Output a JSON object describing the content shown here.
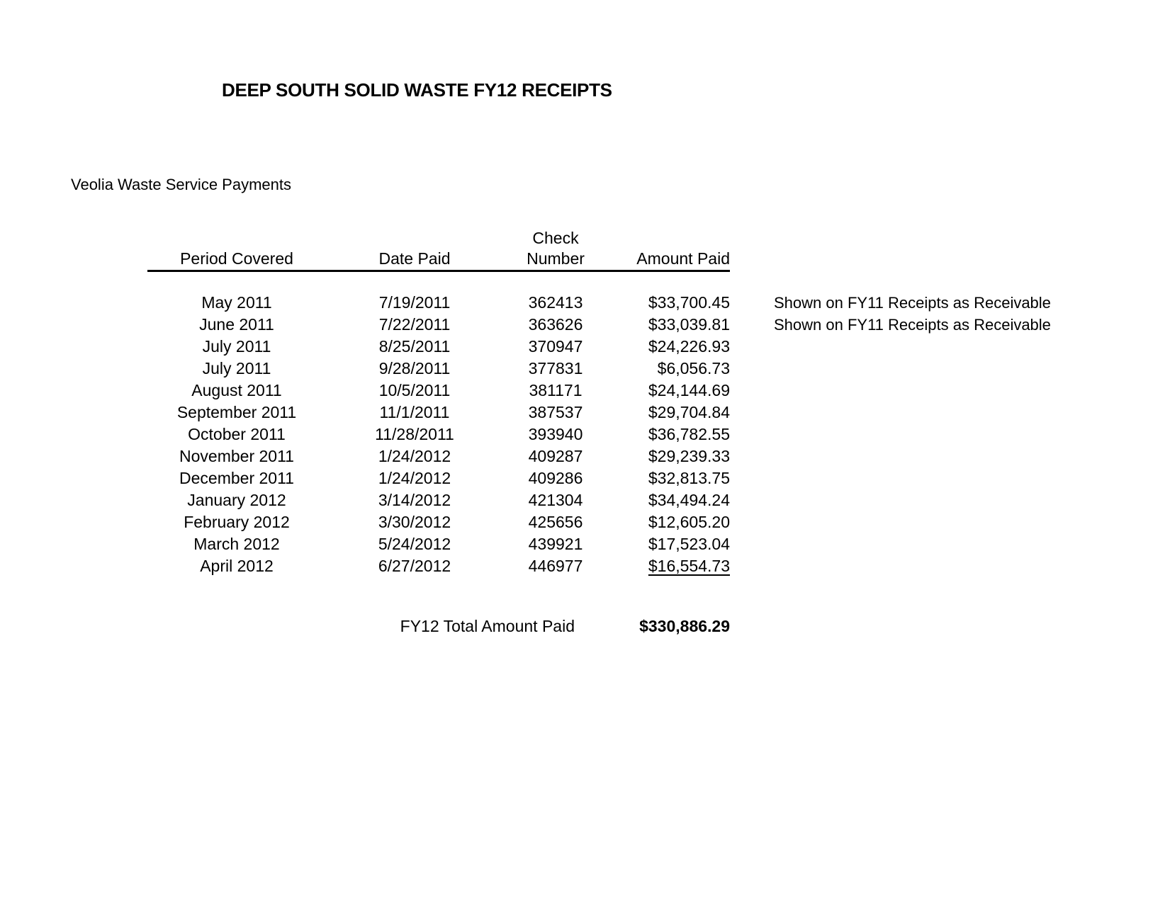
{
  "page": {
    "title": "DEEP SOUTH SOLID WASTE FY12 RECEIPTS",
    "subtitle": "Veolia Waste Service Payments"
  },
  "table": {
    "headers": {
      "period": "Period Covered",
      "date": "Date Paid",
      "check_line1": "Check",
      "check_line2": "Number",
      "amount": "Amount Paid"
    },
    "rows": [
      {
        "period": "May 2011",
        "date": "7/19/2011",
        "check": "362413",
        "amount": "$33,700.45",
        "note": "Shown on FY11 Receipts as Receivable",
        "amount_underlined": false
      },
      {
        "period": "June 2011",
        "date": "7/22/2011",
        "check": "363626",
        "amount": "$33,039.81",
        "note": "Shown on FY11 Receipts as Receivable",
        "amount_underlined": false
      },
      {
        "period": "July 2011",
        "date": "8/25/2011",
        "check": "370947",
        "amount": "$24,226.93",
        "note": "",
        "amount_underlined": false
      },
      {
        "period": "July 2011",
        "date": "9/28/2011",
        "check": "377831",
        "amount": "$6,056.73",
        "note": "",
        "amount_underlined": false
      },
      {
        "period": "August 2011",
        "date": "10/5/2011",
        "check": "381171",
        "amount": "$24,144.69",
        "note": "",
        "amount_underlined": false
      },
      {
        "period": "September 2011",
        "date": "11/1/2011",
        "check": "387537",
        "amount": "$29,704.84",
        "note": "",
        "amount_underlined": false
      },
      {
        "period": "October 2011",
        "date": "11/28/2011",
        "check": "393940",
        "amount": "$36,782.55",
        "note": "",
        "amount_underlined": false
      },
      {
        "period": "November 2011",
        "date": "1/24/2012",
        "check": "409287",
        "amount": "$29,239.33",
        "note": "",
        "amount_underlined": false
      },
      {
        "period": "December 2011",
        "date": "1/24/2012",
        "check": "409286",
        "amount": "$32,813.75",
        "note": "",
        "amount_underlined": false
      },
      {
        "period": "January 2012",
        "date": "3/14/2012",
        "check": "421304",
        "amount": "$34,494.24",
        "note": "",
        "amount_underlined": false
      },
      {
        "period": "February 2012",
        "date": "3/30/2012",
        "check": "425656",
        "amount": "$12,605.20",
        "note": "",
        "amount_underlined": false
      },
      {
        "period": "March 2012",
        "date": "5/24/2012",
        "check": "439921",
        "amount": "$17,523.04",
        "note": "",
        "amount_underlined": false
      },
      {
        "period": "April 2012",
        "date": "6/27/2012",
        "check": "446977",
        "amount": "$16,554.73",
        "note": "",
        "amount_underlined": true
      }
    ],
    "total": {
      "label": "FY12 Total Amount Paid",
      "amount": "$330,886.29"
    }
  },
  "colors": {
    "text": "#000000",
    "background": "#ffffff"
  }
}
